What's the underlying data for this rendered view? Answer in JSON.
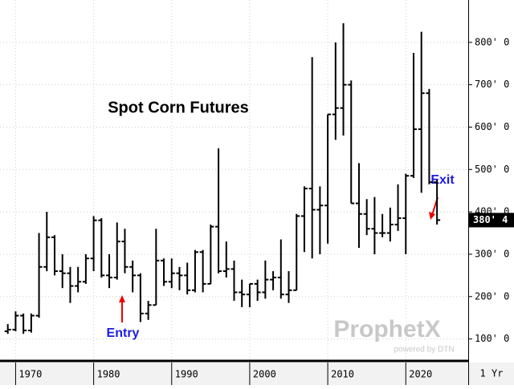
{
  "chart_data": {
    "type": "ohlc",
    "title": "Spot Corn Futures",
    "x": [
      1969,
      1970,
      1971,
      1972,
      1973,
      1974,
      1975,
      1976,
      1977,
      1978,
      1979,
      1980,
      1981,
      1982,
      1983,
      1984,
      1985,
      1986,
      1987,
      1988,
      1989,
      1990,
      1991,
      1992,
      1993,
      1994,
      1995,
      1996,
      1997,
      1998,
      1999,
      2000,
      2001,
      2002,
      2003,
      2004,
      2005,
      2006,
      2007,
      2008,
      2009,
      2010,
      2011,
      2012,
      2013,
      2014,
      2015,
      2016,
      2017,
      2018,
      2019,
      2020,
      2021,
      2022,
      2023,
      2024
    ],
    "open": [
      118,
      122,
      155,
      120,
      155,
      270,
      340,
      260,
      255,
      225,
      235,
      290,
      380,
      250,
      245,
      330,
      270,
      250,
      160,
      180,
      285,
      235,
      255,
      250,
      215,
      305,
      230,
      365,
      260,
      265,
      210,
      205,
      230,
      210,
      240,
      245,
      205,
      215,
      390,
      455,
      405,
      415,
      630,
      645,
      700,
      420,
      395,
      360,
      350,
      350,
      370,
      385,
      485,
      595,
      680,
      470
    ],
    "high": [
      135,
      165,
      160,
      160,
      350,
      400,
      345,
      300,
      270,
      270,
      300,
      390,
      385,
      300,
      375,
      360,
      285,
      255,
      190,
      360,
      290,
      290,
      270,
      280,
      310,
      310,
      370,
      550,
      330,
      285,
      240,
      230,
      240,
      285,
      260,
      335,
      260,
      395,
      460,
      765,
      460,
      630,
      800,
      845,
      710,
      515,
      430,
      435,
      395,
      410,
      465,
      490,
      775,
      825,
      690,
      475
    ],
    "low": [
      112,
      118,
      112,
      115,
      150,
      260,
      250,
      220,
      185,
      210,
      230,
      260,
      245,
      220,
      240,
      255,
      210,
      140,
      145,
      180,
      225,
      220,
      215,
      205,
      210,
      210,
      230,
      255,
      245,
      190,
      175,
      175,
      190,
      195,
      215,
      195,
      185,
      215,
      305,
      290,
      300,
      325,
      570,
      580,
      420,
      315,
      345,
      300,
      340,
      330,
      355,
      300,
      480,
      445,
      465,
      370
    ],
    "close": [
      122,
      155,
      120,
      155,
      270,
      340,
      260,
      255,
      225,
      235,
      290,
      380,
      250,
      245,
      330,
      270,
      250,
      160,
      180,
      285,
      235,
      255,
      250,
      215,
      305,
      230,
      365,
      260,
      265,
      210,
      205,
      230,
      210,
      240,
      245,
      205,
      215,
      390,
      455,
      405,
      415,
      630,
      645,
      700,
      420,
      395,
      360,
      350,
      350,
      370,
      385,
      485,
      595,
      680,
      470,
      380.5
    ],
    "color": "#000000",
    "xlim": [
      1968,
      2028
    ],
    "xticks": [
      1970,
      1980,
      1990,
      2000,
      2010,
      2020
    ],
    "ylim": [
      50,
      900
    ],
    "yticks": [
      {
        "value": 100,
        "label": "100' 0"
      },
      {
        "value": 200,
        "label": "200' 0"
      },
      {
        "value": 300,
        "label": "300' 0"
      },
      {
        "value": 400,
        "label": "400' 0"
      },
      {
        "value": 500,
        "label": "500' 0"
      },
      {
        "value": 600,
        "label": "600' 0"
      },
      {
        "value": 700,
        "label": "700' 0"
      },
      {
        "value": 800,
        "label": "800' 0"
      }
    ],
    "grid": true,
    "last_price": {
      "value": 380.5,
      "label": "380' 4"
    },
    "annotations": {
      "entry": "Entry",
      "exit": "Exit"
    },
    "period": "1 Yr",
    "watermark": {
      "brand": "ProphetX",
      "tagline": "powered by DTN"
    }
  }
}
